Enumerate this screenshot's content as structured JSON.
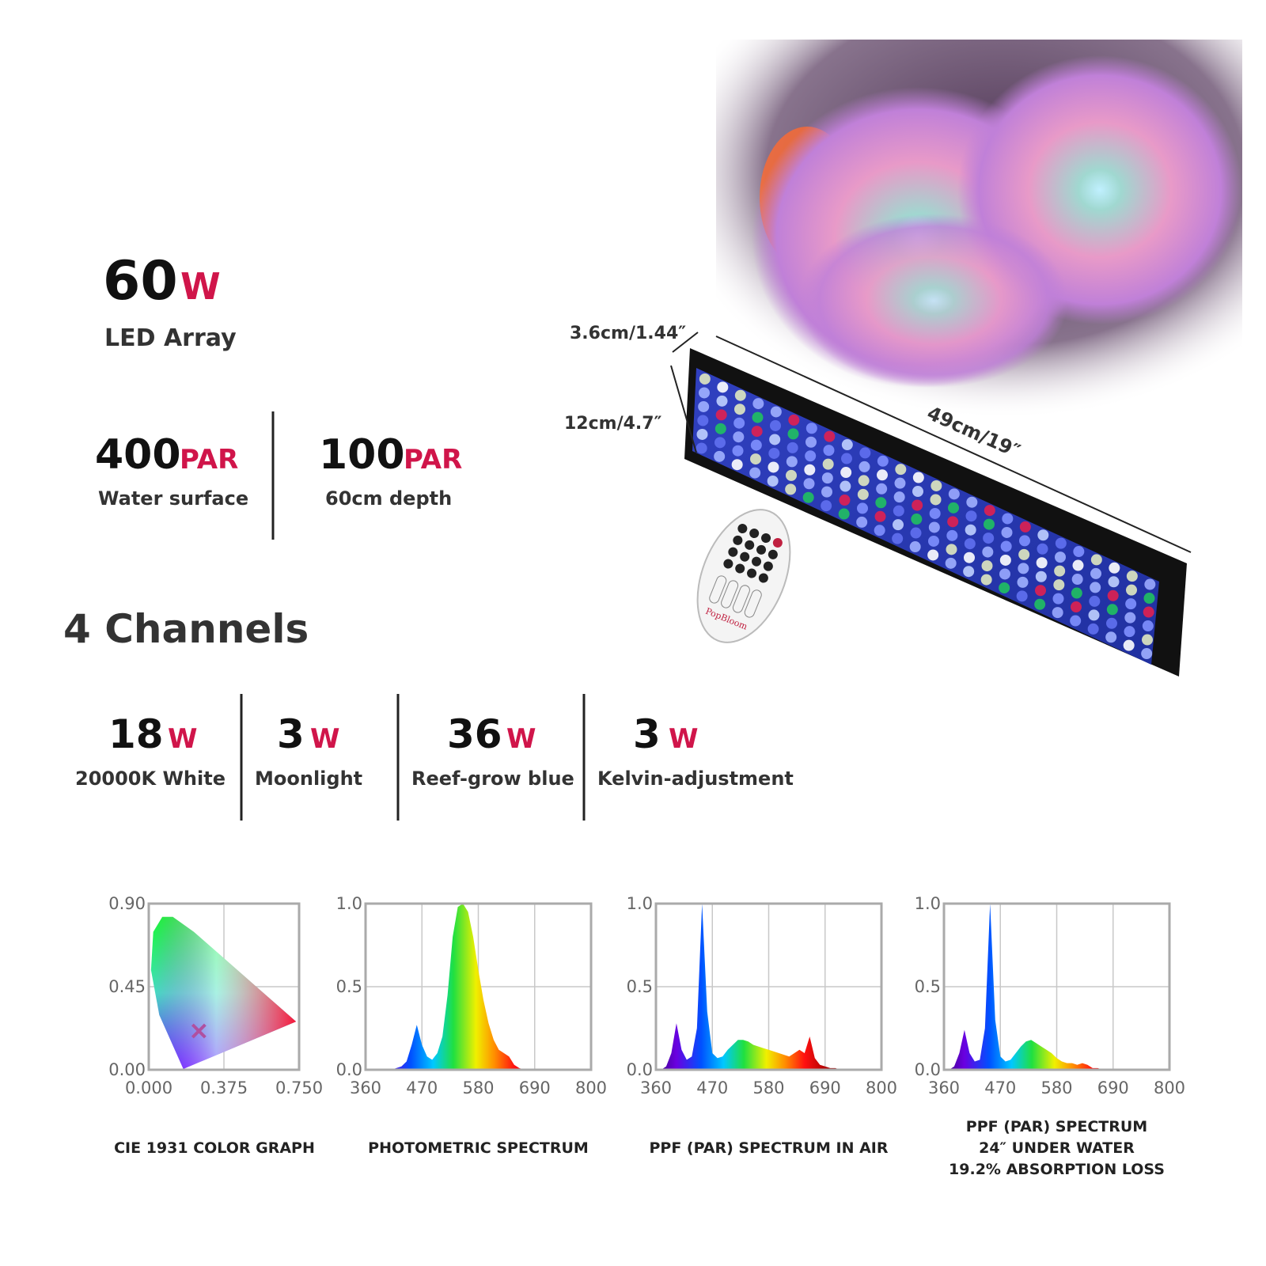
{
  "specs": {
    "total": {
      "value": 60,
      "unit": "W",
      "label": "LED Array"
    },
    "par": [
      {
        "value": 400,
        "unit": "PAR",
        "label": "Water surface"
      },
      {
        "value": 100,
        "unit": "PAR",
        "label": "60cm depth"
      }
    ],
    "channels_title": "4 Channels",
    "channels": [
      {
        "value": 18,
        "unit": "W",
        "label": "20000K White"
      },
      {
        "value": 3,
        "unit": "W",
        "label": "Moonlight"
      },
      {
        "value": 36,
        "unit": "W",
        "label": "Reef-grow blue"
      },
      {
        "value": 3,
        "unit": "W",
        "label": "Kelvin-adjustment"
      }
    ]
  },
  "dimensions": [
    "3.6cm/1.44″",
    "12cm/4.7″",
    "49cm/19″"
  ],
  "remote_brand": "PopBloom",
  "chart_data": [
    {
      "type": "scatter",
      "title": [
        "CIE 1931 COLOR GRAPH"
      ],
      "x": [
        0.25
      ],
      "values": [
        0.21
      ],
      "color": "#b050a0",
      "xlim": [
        0,
        0.75
      ],
      "ylim": [
        0,
        0.9
      ],
      "xticks": [
        {
          "value": 0,
          "label": "0.000"
        },
        0.375,
        {
          "value": 0.75,
          "label": "0.750"
        }
      ],
      "yticks": [
        {
          "value": 0,
          "label": "0.00"
        },
        0.45,
        {
          "value": 0.9,
          "label": "0.90"
        }
      ],
      "grid": true
    },
    {
      "type": "area",
      "title": [
        "PHOTOMETRIC SPECTRUM"
      ],
      "x": [
        360,
        370,
        380,
        390,
        400,
        410,
        420,
        430,
        440,
        450,
        460,
        470,
        480,
        490,
        500,
        510,
        520,
        530,
        540,
        550,
        560,
        570,
        580,
        590,
        600,
        610,
        620,
        630,
        640,
        650,
        660,
        670,
        680,
        690,
        700,
        710,
        720,
        730,
        740,
        750,
        760,
        770,
        780,
        790,
        800
      ],
      "values": [
        0,
        0,
        0,
        0,
        0,
        0,
        0.01,
        0.02,
        0.05,
        0.15,
        0.27,
        0.15,
        0.08,
        0.06,
        0.1,
        0.2,
        0.45,
        0.8,
        0.98,
        1.0,
        0.95,
        0.8,
        0.6,
        0.42,
        0.28,
        0.18,
        0.12,
        0.1,
        0.08,
        0.03,
        0.01,
        0,
        0,
        0,
        0,
        0,
        0,
        0,
        0,
        0,
        0,
        0,
        0,
        0,
        0
      ],
      "xlim": [
        360,
        800
      ],
      "ylim": [
        0,
        1
      ],
      "xticks": [
        360,
        470,
        580,
        690,
        800
      ],
      "yticks": [
        {
          "value": 0,
          "label": "0.0"
        },
        0.5,
        {
          "value": 1,
          "label": "1.0"
        }
      ],
      "grid": true
    },
    {
      "type": "area",
      "title": [
        "PPF (PAR) SPECTRUM IN AIR"
      ],
      "x": [
        360,
        370,
        380,
        390,
        400,
        410,
        420,
        430,
        440,
        450,
        460,
        470,
        480,
        490,
        500,
        510,
        520,
        530,
        540,
        550,
        560,
        570,
        580,
        590,
        600,
        610,
        620,
        630,
        640,
        650,
        660,
        670,
        680,
        690,
        700,
        710,
        720,
        730,
        740,
        750,
        760,
        770,
        780,
        790,
        800
      ],
      "values": [
        0,
        0,
        0.02,
        0.1,
        0.28,
        0.12,
        0.06,
        0.08,
        0.25,
        1.0,
        0.35,
        0.1,
        0.07,
        0.08,
        0.12,
        0.15,
        0.18,
        0.18,
        0.17,
        0.15,
        0.14,
        0.13,
        0.12,
        0.11,
        0.1,
        0.09,
        0.08,
        0.1,
        0.12,
        0.1,
        0.2,
        0.07,
        0.03,
        0.02,
        0.01,
        0.01,
        0,
        0,
        0,
        0,
        0,
        0,
        0,
        0,
        0
      ],
      "xlim": [
        360,
        800
      ],
      "ylim": [
        0,
        1
      ],
      "xticks": [
        360,
        470,
        580,
        690,
        800
      ],
      "yticks": [
        {
          "value": 0,
          "label": "0.0"
        },
        0.5,
        {
          "value": 1,
          "label": "1.0"
        }
      ],
      "grid": true
    },
    {
      "type": "area",
      "title": [
        "PPF (PAR) SPECTRUM",
        "24″ UNDER WATER",
        "19.2% ABSORPTION LOSS"
      ],
      "x": [
        360,
        370,
        380,
        390,
        400,
        410,
        420,
        430,
        440,
        450,
        460,
        470,
        480,
        490,
        500,
        510,
        520,
        530,
        540,
        550,
        560,
        570,
        580,
        590,
        600,
        610,
        620,
        630,
        640,
        650,
        660,
        670,
        680,
        690,
        700,
        710,
        720,
        730,
        740,
        750,
        760,
        770,
        780,
        790,
        800
      ],
      "values": [
        0,
        0,
        0.02,
        0.1,
        0.24,
        0.1,
        0.05,
        0.06,
        0.25,
        1.0,
        0.3,
        0.08,
        0.05,
        0.06,
        0.1,
        0.14,
        0.17,
        0.18,
        0.16,
        0.14,
        0.12,
        0.1,
        0.07,
        0.05,
        0.04,
        0.04,
        0.03,
        0.04,
        0.03,
        0.01,
        0.01,
        0,
        0,
        0,
        0,
        0,
        0,
        0,
        0,
        0,
        0,
        0,
        0,
        0,
        0
      ],
      "xlim": [
        360,
        800
      ],
      "ylim": [
        0,
        1
      ],
      "xticks": [
        360,
        470,
        580,
        690,
        800
      ],
      "yticks": [
        {
          "value": 0,
          "label": "0.0"
        },
        0.5,
        {
          "value": 1,
          "label": "1.0"
        }
      ],
      "grid": true
    }
  ]
}
